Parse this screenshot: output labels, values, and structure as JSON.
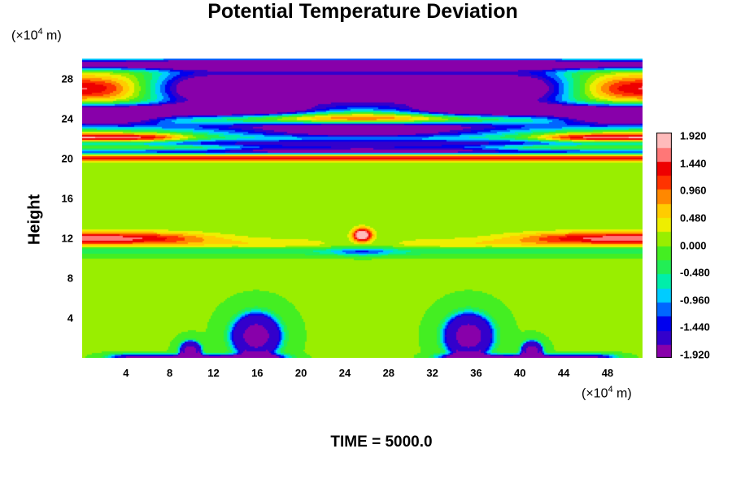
{
  "chart_data": {
    "type": "heatmap",
    "title": "Potential Temperature Deviation",
    "ylabel": "Height",
    "y_unit": {
      "prefix": "(×10",
      "exp": "4",
      "suffix": " m)"
    },
    "x_unit": {
      "prefix": "(×10",
      "exp": "4",
      "suffix": " m)"
    },
    "xlim": [
      0,
      51.2
    ],
    "ylim": [
      0,
      30
    ],
    "x_ticks": [
      4,
      8,
      12,
      16,
      20,
      24,
      28,
      32,
      36,
      40,
      44,
      48
    ],
    "y_ticks": [
      4,
      8,
      12,
      16,
      20,
      24,
      28
    ],
    "colorbar": {
      "ticks": [
        "1.920",
        "1.440",
        "0.960",
        "0.480",
        "0.000",
        "-0.480",
        "-0.960",
        "-1.440",
        "-1.920"
      ],
      "range": [
        -1.92,
        1.92
      ],
      "colors": [
        "#8800aa",
        "#3300cc",
        "#0000ee",
        "#0066ff",
        "#00ccff",
        "#00eeaa",
        "#22ee55",
        "#44ee22",
        "#99ee00",
        "#eeee00",
        "#ffcc00",
        "#ff8800",
        "#ff3300",
        "#ee0000",
        "#ff7777",
        "#ffbbbb"
      ]
    }
  },
  "footer": {
    "time_label": "TIME = 5000.0"
  }
}
